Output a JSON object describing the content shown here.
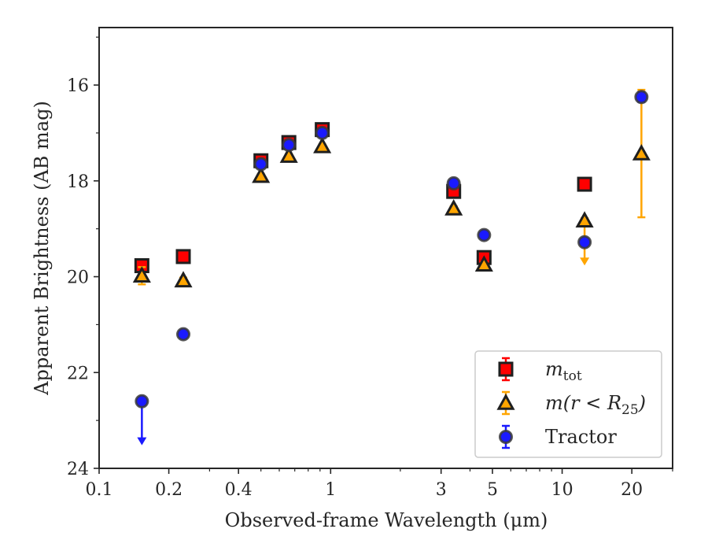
{
  "chart_data": {
    "type": "scatter",
    "title": "",
    "xlabel": "Observed-frame Wavelength (μm)",
    "ylabel": "Apparent Brightness (AB mag)",
    "xscale": "log",
    "xlim": [
      0.1,
      30
    ],
    "ylim": [
      24,
      14.8
    ],
    "y_inverted": true,
    "x_ticks": [
      0.1,
      0.2,
      0.4,
      1,
      3,
      5,
      10,
      20
    ],
    "x_tick_labels": [
      "0.1",
      "0.2",
      "0.4",
      "1",
      "3",
      "5",
      "10",
      "20"
    ],
    "y_ticks": [
      16,
      18,
      20,
      22,
      24
    ],
    "y_tick_labels": [
      "16",
      "18",
      "20",
      "22",
      "24"
    ],
    "legend_position": "lower-right",
    "series": [
      {
        "name": "m_tot",
        "legend_main": "m",
        "legend_sub": "tot",
        "marker": "square",
        "color": "#ff0000",
        "errcolor": "#ff0000",
        "points": [
          {
            "x": 0.153,
            "y": 19.77,
            "err": 0.06
          },
          {
            "x": 0.231,
            "y": 19.58,
            "err": 0.05
          },
          {
            "x": 0.5,
            "y": 17.58,
            "err": 0.04
          },
          {
            "x": 0.66,
            "y": 17.2,
            "err": 0.04
          },
          {
            "x": 0.92,
            "y": 16.93,
            "err": 0.04
          },
          {
            "x": 3.4,
            "y": 18.22,
            "err": 0.06
          },
          {
            "x": 4.6,
            "y": 19.6,
            "err": 0.06
          },
          {
            "x": 12.5,
            "y": 18.07,
            "err": 0.05
          }
        ]
      },
      {
        "name": "m(r<R25)",
        "legend_main": "m(r < R",
        "legend_sub": "25",
        "legend_tail": ")",
        "marker": "triangle",
        "color": "#ffa500",
        "errcolor": "#ffa500",
        "points": [
          {
            "x": 0.153,
            "y": 19.98,
            "err": 0.18
          },
          {
            "x": 0.231,
            "y": 20.08,
            "err": 0.06
          },
          {
            "x": 0.5,
            "y": 17.9,
            "err": 0.04
          },
          {
            "x": 0.66,
            "y": 17.48,
            "err": 0.04
          },
          {
            "x": 0.92,
            "y": 17.28,
            "err": 0.04
          },
          {
            "x": 3.4,
            "y": 18.58,
            "err": 0.05
          },
          {
            "x": 4.6,
            "y": 19.75,
            "err": 0.05
          },
          {
            "x": 12.5,
            "y": 18.83,
            "err": 0.05,
            "upper_limit_to": 19.75
          },
          {
            "x": 22.0,
            "y": 17.43,
            "err_low": 1.33,
            "err_high": 1.33
          }
        ]
      },
      {
        "name": "Tractor",
        "legend_main": "Tractor",
        "marker": "circle",
        "color": "#1a1aff",
        "errcolor": "#1a1aff",
        "points": [
          {
            "x": 0.153,
            "y": 22.6,
            "err": 0.05,
            "upper_limit_to": 23.5
          },
          {
            "x": 0.231,
            "y": 21.2,
            "err": 0.08
          },
          {
            "x": 0.5,
            "y": 17.65,
            "err": 0.06
          },
          {
            "x": 0.66,
            "y": 17.25,
            "err": 0.06
          },
          {
            "x": 0.92,
            "y": 17.0,
            "err": 0.06
          },
          {
            "x": 3.4,
            "y": 18.05,
            "err": 0.05
          },
          {
            "x": 4.6,
            "y": 19.13,
            "err": 0.05
          },
          {
            "x": 12.5,
            "y": 19.28,
            "err": 0.06
          },
          {
            "x": 22.0,
            "y": 16.25,
            "err": 0.1
          }
        ]
      }
    ]
  }
}
